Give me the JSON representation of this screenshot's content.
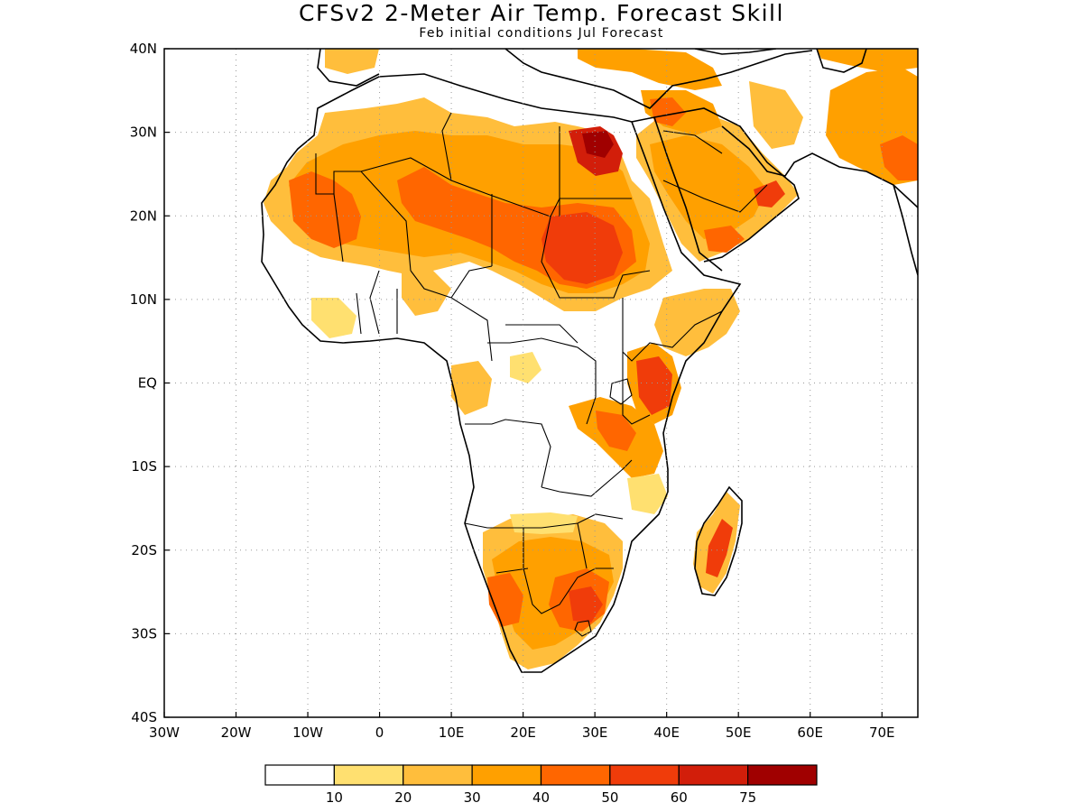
{
  "title": "CFSv2 2-Meter Air Temp. Forecast Skill",
  "subtitle": "Feb initial conditions  Jul Forecast",
  "map": {
    "lon_range": [
      -30,
      75
    ],
    "lat_range": [
      -40,
      40
    ],
    "lon_ticks": [
      {
        "value": -30,
        "label": "30W"
      },
      {
        "value": -20,
        "label": "20W"
      },
      {
        "value": -10,
        "label": "10W"
      },
      {
        "value": 0,
        "label": "0"
      },
      {
        "value": 10,
        "label": "10E"
      },
      {
        "value": 20,
        "label": "20E"
      },
      {
        "value": 30,
        "label": "30E"
      },
      {
        "value": 40,
        "label": "40E"
      },
      {
        "value": 50,
        "label": "50E"
      },
      {
        "value": 60,
        "label": "60E"
      },
      {
        "value": 70,
        "label": "70E"
      }
    ],
    "lat_ticks": [
      {
        "value": 40,
        "label": "40N"
      },
      {
        "value": 30,
        "label": "30N"
      },
      {
        "value": 20,
        "label": "20N"
      },
      {
        "value": 10,
        "label": "10N"
      },
      {
        "value": 0,
        "label": "EQ"
      },
      {
        "value": -10,
        "label": "10S"
      },
      {
        "value": -20,
        "label": "20S"
      },
      {
        "value": -30,
        "label": "30S"
      },
      {
        "value": -40,
        "label": "40S"
      }
    ],
    "gridlines": true,
    "grid_color": "#999999"
  },
  "legend": {
    "colors": [
      "#ffffff",
      "#ffe070",
      "#ffbe3c",
      "#ffa000",
      "#ff6600",
      "#f03c0a",
      "#d21e0a",
      "#a00000"
    ],
    "labels": [
      "10",
      "20",
      "30",
      "40",
      "50",
      "60",
      "75"
    ]
  },
  "skill_colors": {
    "c1": "#ffe070",
    "c2": "#ffbe3c",
    "c3": "#ffa000",
    "c4": "#ff6600",
    "c5": "#f03c0a",
    "c6": "#d21e0a",
    "c7": "#a00000"
  }
}
